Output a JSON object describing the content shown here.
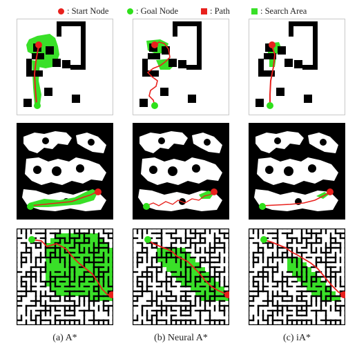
{
  "legend": {
    "start": {
      "label": ": Start Node",
      "color": "#e8211d"
    },
    "goal": {
      "label": ": Goal Node",
      "color": "#2fe01b"
    },
    "path": {
      "label": ": Path",
      "color": "#e8211d"
    },
    "search": {
      "label": ": Search Area",
      "color": "#39e028"
    }
  },
  "colors": {
    "obstacle": "#000000",
    "free": "#ffffff",
    "search": "#39e028",
    "path": "#e8211d",
    "start": "#e8211d",
    "goal": "#2fe01b",
    "frame": "#c8c8c8"
  },
  "methods": [
    {
      "id": "astar",
      "caption": "(a) A*"
    },
    {
      "id": "neural",
      "caption": "(b) Neural A*"
    },
    {
      "id": "ia",
      "caption": "(c) iA*"
    }
  ]
}
